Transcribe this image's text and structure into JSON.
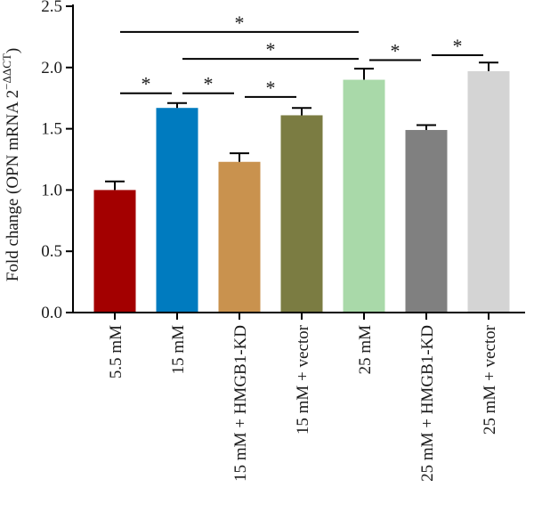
{
  "chart_data": {
    "type": "bar",
    "ylabel_main": "Fold change (OPN mRNA 2",
    "ylabel_sup": "−ΔΔCT",
    "ylabel_close": ")",
    "ylim": [
      0,
      2.5
    ],
    "yticks": [
      "0.0",
      "0.5",
      "1.0",
      "1.5",
      "2.0",
      "2.5"
    ],
    "categories": [
      "5.5 mM",
      "15 mM",
      "15 mM + HMGB1-KD",
      "15 mM + vector",
      "25 mM",
      "25 mM + HMGB1-KD",
      "25 mM + vector"
    ],
    "values": [
      1.0,
      1.67,
      1.23,
      1.61,
      1.9,
      1.49,
      1.97
    ],
    "errors": [
      0.07,
      0.04,
      0.07,
      0.06,
      0.09,
      0.04,
      0.07
    ],
    "colors": [
      "#a30000",
      "#007bbf",
      "#c9924e",
      "#7b7c42",
      "#a9d9a9",
      "#808080",
      "#d4d4d4"
    ],
    "significance": [
      {
        "from": 0,
        "to": 4,
        "y": 2.29,
        "label": "*"
      },
      {
        "from": 1,
        "to": 4,
        "y": 2.07,
        "label": "*"
      },
      {
        "from": 0,
        "to": 1,
        "y": 1.79,
        "label": "*"
      },
      {
        "from": 1,
        "to": 2,
        "y": 1.79,
        "label": "*"
      },
      {
        "from": 2,
        "to": 3,
        "y": 1.76,
        "label": "*"
      },
      {
        "from": 4,
        "to": 5,
        "y": 2.06,
        "label": "*"
      },
      {
        "from": 5,
        "to": 6,
        "y": 2.1,
        "label": "*"
      }
    ]
  }
}
